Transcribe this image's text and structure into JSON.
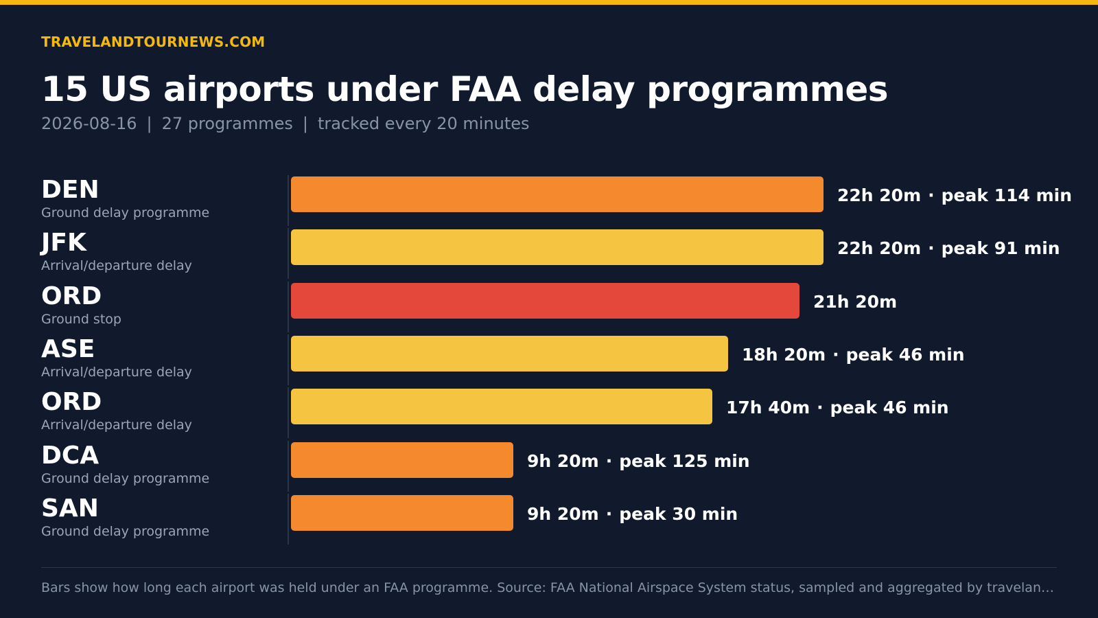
{
  "brand": "TRAVELANDTOURNEWS.COM",
  "title": "15 US airports under FAA delay programmes",
  "subtitle": {
    "date": "2026-08-16",
    "programmes": "27 programmes",
    "cadence": "tracked every 20 minutes",
    "separator": "|"
  },
  "footer": "Bars show how long each airport was held under an FAA programme. Source: FAA National Airspace System status, sampled and aggregated by travelandtourNews.com",
  "colors": {
    "accent": "#f5b80f",
    "background": "#101a2c",
    "ground_delay_programme": "#f5892e",
    "arrival_departure_delay": "#f5c542",
    "ground_stop": "#e3483b"
  },
  "chart_data": {
    "type": "bar",
    "orientation": "horizontal",
    "value_unit": "minutes",
    "xlim": [
      0,
      1380
    ],
    "grid": false,
    "legend": "none",
    "categories": [
      "DEN",
      "JFK",
      "ORD",
      "ASE",
      "ORD",
      "DCA",
      "SAN"
    ],
    "rows": [
      {
        "code": "DEN",
        "type": "Ground delay programme",
        "minutes": 1340,
        "duration": "22h 20m",
        "peak": "peak 114 min",
        "color": "#f5892e"
      },
      {
        "code": "JFK",
        "type": "Arrival/departure delay",
        "minutes": 1340,
        "duration": "22h 20m",
        "peak": "peak 91 min",
        "color": "#f5c542"
      },
      {
        "code": "ORD",
        "type": "Ground stop",
        "minutes": 1280,
        "duration": "21h 20m",
        "peak": "",
        "color": "#e3483b"
      },
      {
        "code": "ASE",
        "type": "Arrival/departure delay",
        "minutes": 1100,
        "duration": "18h 20m",
        "peak": "peak 46 min",
        "color": "#f5c542"
      },
      {
        "code": "ORD",
        "type": "Arrival/departure delay",
        "minutes": 1060,
        "duration": "17h 40m",
        "peak": "peak 46 min",
        "color": "#f5c542"
      },
      {
        "code": "DCA",
        "type": "Ground delay programme",
        "minutes": 560,
        "duration": "9h 20m",
        "peak": "peak 125 min",
        "color": "#f5892e"
      },
      {
        "code": "SAN",
        "type": "Ground delay programme",
        "minutes": 560,
        "duration": "9h 20m",
        "peak": "peak 30 min",
        "color": "#f5892e"
      }
    ]
  }
}
